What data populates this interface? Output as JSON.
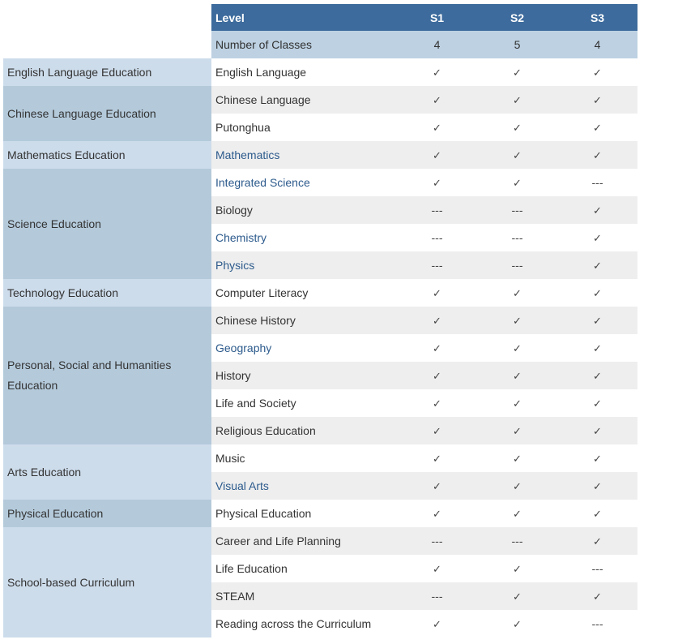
{
  "header": {
    "level_label": "Level",
    "levels": [
      "S1",
      "S2",
      "S3"
    ]
  },
  "classes": {
    "label": "Number of Classes",
    "values": [
      "4",
      "5",
      "4"
    ]
  },
  "kla_groups": [
    {
      "name": "English Language Education",
      "shade": "light",
      "span": 1
    },
    {
      "name": "Chinese Language Education",
      "shade": "dark",
      "span": 2
    },
    {
      "name": "Mathematics Education",
      "shade": "light",
      "span": 1
    },
    {
      "name": "Science Education",
      "shade": "dark",
      "span": 4
    },
    {
      "name": "Technology Education",
      "shade": "light",
      "span": 1
    },
    {
      "name": "Personal, Social and Humanities Education",
      "shade": "dark",
      "span": 5
    },
    {
      "name": "Arts Education",
      "shade": "light",
      "span": 2
    },
    {
      "name": "Physical Education",
      "shade": "dark",
      "span": 1
    },
    {
      "name": "School-based Curriculum",
      "shade": "light",
      "span": 4
    }
  ],
  "subjects": [
    {
      "name": "English Language",
      "link": false,
      "marks": [
        "✓",
        "✓",
        "✓"
      ]
    },
    {
      "name": "Chinese Language",
      "link": false,
      "marks": [
        "✓",
        "✓",
        "✓"
      ]
    },
    {
      "name": "Putonghua",
      "link": false,
      "marks": [
        "✓",
        "✓",
        "✓"
      ]
    },
    {
      "name": "Mathematics",
      "link": true,
      "marks": [
        "✓",
        "✓",
        "✓"
      ]
    },
    {
      "name": "Integrated Science",
      "link": true,
      "marks": [
        "✓",
        "✓",
        "---"
      ]
    },
    {
      "name": "Biology",
      "link": false,
      "marks": [
        "---",
        "---",
        "✓"
      ]
    },
    {
      "name": "Chemistry",
      "link": true,
      "marks": [
        "---",
        "---",
        "✓"
      ]
    },
    {
      "name": "Physics",
      "link": true,
      "marks": [
        "---",
        "---",
        "✓"
      ]
    },
    {
      "name": "Computer Literacy",
      "link": false,
      "marks": [
        "✓",
        "✓",
        "✓"
      ]
    },
    {
      "name": "Chinese History",
      "link": false,
      "marks": [
        "✓",
        "✓",
        "✓"
      ]
    },
    {
      "name": "Geography",
      "link": true,
      "marks": [
        "✓",
        "✓",
        "✓"
      ]
    },
    {
      "name": "History",
      "link": false,
      "marks": [
        "✓",
        "✓",
        "✓"
      ]
    },
    {
      "name": "Life and Society",
      "link": false,
      "marks": [
        "✓",
        "✓",
        "✓"
      ]
    },
    {
      "name": "Religious Education",
      "link": false,
      "marks": [
        "✓",
        "✓",
        "✓"
      ]
    },
    {
      "name": "Music",
      "link": false,
      "marks": [
        "✓",
        "✓",
        "✓"
      ]
    },
    {
      "name": "Visual Arts",
      "link": true,
      "marks": [
        "✓",
        "✓",
        "✓"
      ]
    },
    {
      "name": "Physical Education",
      "link": false,
      "marks": [
        "✓",
        "✓",
        "✓"
      ]
    },
    {
      "name": "Career and Life Planning",
      "link": false,
      "marks": [
        "---",
        "---",
        "✓"
      ]
    },
    {
      "name": "Life Education",
      "link": false,
      "marks": [
        "✓",
        "✓",
        "---"
      ]
    },
    {
      "name": "STEAM",
      "link": false,
      "marks": [
        "---",
        "✓",
        "✓"
      ]
    },
    {
      "name": "Reading across the Curriculum",
      "link": false,
      "marks": [
        "✓",
        "✓",
        "---"
      ]
    }
  ]
}
